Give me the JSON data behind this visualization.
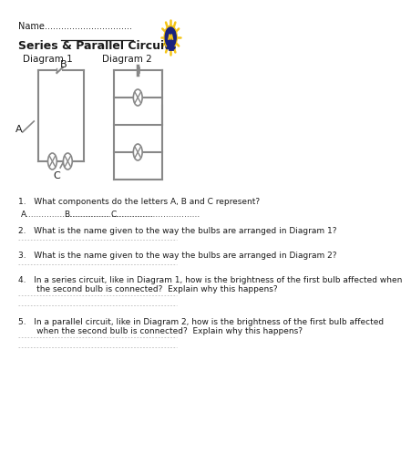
{
  "title": "Series & Parallel Circuits",
  "name_label": "Name",
  "name_dots": "......................................",
  "diagram1_label": "Diagram 1",
  "diagram2_label": "Diagram 2",
  "label_A": "A",
  "label_B": "B",
  "label_C": "C",
  "questions": [
    "1.   What components do the letters A, B and C represent?",
    "2.   What is the name given to the way the bulbs are arranged in Diagram 1?",
    "3.   What is the name given to the way the bulbs are arranged in Diagram 2?",
    "4.   In a series circuit, like in Diagram 1, how is the brightness of the first bulb affected when\n       the second bulb is connected?  Explain why this happens?",
    "5.   In a parallel circuit, like in Diagram 2, how is the brightness of the first bulb affected\n       when the second bulb is connected?  Explain why this happens?"
  ],
  "answer_line_A": "A................................",
  "answer_line_B": "B................................",
  "answer_line_C": "C................................",
  "background_color": "#ffffff",
  "text_color": "#1a1a1a",
  "line_color": "#888888",
  "bulb_color": "#888888",
  "ray_color": "#f5c518",
  "bulb_navy": "#1a237e",
  "dot_line_color": "#bbbbbb"
}
